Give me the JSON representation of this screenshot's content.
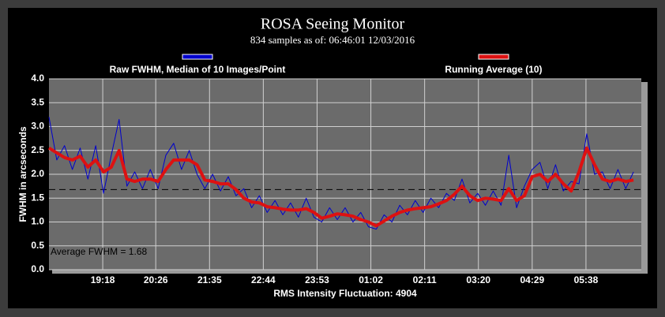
{
  "chart_data": {
    "type": "line",
    "title": "ROSA Seeing Monitor",
    "subtitle": "834 samples as of: 06:46:01 12/03/2016",
    "xlabel": "RMS Intensity Fluctuation: 4904",
    "ylabel": "FWHM in arcseconds",
    "annotation": "Average FWHM = 1.68",
    "average": 1.68,
    "grid": true,
    "xlim": [
      1089,
      1849
    ],
    "ylim": [
      0,
      4
    ],
    "xticks": [
      {
        "value": 1158,
        "label": "19:18"
      },
      {
        "value": 1226,
        "label": "20:26"
      },
      {
        "value": 1295,
        "label": "21:35"
      },
      {
        "value": 1364,
        "label": "22:44"
      },
      {
        "value": 1433,
        "label": "23:53"
      },
      {
        "value": 1502,
        "label": "01:02"
      },
      {
        "value": 1571,
        "label": "02:11"
      },
      {
        "value": 1640,
        "label": "03:20"
      },
      {
        "value": 1709,
        "label": "04:29"
      },
      {
        "value": 1778,
        "label": "05:38"
      }
    ],
    "yticks": [
      {
        "value": 0,
        "label": "0.0"
      },
      {
        "value": 0.5,
        "label": "0.5"
      },
      {
        "value": 1,
        "label": "1.0"
      },
      {
        "value": 1.5,
        "label": "1.5"
      },
      {
        "value": 2,
        "label": "2.0"
      },
      {
        "value": 2.5,
        "label": "2.5"
      },
      {
        "value": 3,
        "label": "3.0"
      },
      {
        "value": 3.5,
        "label": "3.5"
      },
      {
        "value": 4,
        "label": "4.0"
      }
    ],
    "x": [
      1089,
      1099,
      1109,
      1119,
      1129,
      1139,
      1149,
      1159,
      1169,
      1179,
      1189,
      1199,
      1209,
      1219,
      1229,
      1239,
      1249,
      1259,
      1269,
      1279,
      1289,
      1299,
      1309,
      1319,
      1329,
      1339,
      1349,
      1359,
      1369,
      1379,
      1389,
      1399,
      1409,
      1419,
      1429,
      1439,
      1449,
      1459,
      1469,
      1479,
      1489,
      1499,
      1509,
      1519,
      1529,
      1539,
      1549,
      1559,
      1569,
      1579,
      1589,
      1599,
      1609,
      1619,
      1629,
      1639,
      1649,
      1659,
      1669,
      1679,
      1689,
      1699,
      1709,
      1719,
      1729,
      1739,
      1749,
      1759,
      1769,
      1779,
      1789,
      1799,
      1809,
      1819,
      1829,
      1839
    ],
    "series": [
      {
        "name": "Raw FWHM, Median of 10 Images/Point",
        "color": "#0000cc",
        "width": 1,
        "values": [
          3.2,
          2.3,
          2.6,
          2.1,
          2.55,
          1.9,
          2.6,
          1.6,
          2.4,
          3.15,
          1.75,
          2.05,
          1.7,
          2.1,
          1.7,
          2.4,
          2.65,
          2.1,
          2.5,
          2.0,
          1.7,
          2.0,
          1.65,
          1.95,
          1.55,
          1.7,
          1.3,
          1.55,
          1.2,
          1.45,
          1.15,
          1.4,
          1.1,
          1.5,
          1.1,
          1.0,
          1.3,
          1.05,
          1.3,
          1.0,
          1.2,
          0.9,
          0.85,
          1.15,
          1.0,
          1.35,
          1.15,
          1.45,
          1.2,
          1.5,
          1.3,
          1.6,
          1.45,
          1.9,
          1.4,
          1.6,
          1.35,
          1.65,
          1.35,
          2.4,
          1.3,
          1.75,
          2.1,
          2.25,
          1.7,
          2.2,
          1.65,
          1.85,
          1.8,
          2.85,
          2.0,
          2.05,
          1.7,
          2.1,
          1.7,
          2.05
        ]
      },
      {
        "name": "Running Average (10)",
        "color": "#dd1111",
        "width": 4,
        "values": [
          2.55,
          2.45,
          2.35,
          2.3,
          2.38,
          2.15,
          2.3,
          2.05,
          2.15,
          2.5,
          1.9,
          1.85,
          1.9,
          1.9,
          1.85,
          2.1,
          2.3,
          2.3,
          2.3,
          2.2,
          1.88,
          1.85,
          1.8,
          1.8,
          1.68,
          1.5,
          1.42,
          1.4,
          1.32,
          1.3,
          1.27,
          1.25,
          1.25,
          1.28,
          1.2,
          1.08,
          1.12,
          1.17,
          1.15,
          1.12,
          1.05,
          1.0,
          0.92,
          1.02,
          1.12,
          1.2,
          1.25,
          1.28,
          1.3,
          1.32,
          1.38,
          1.45,
          1.58,
          1.75,
          1.55,
          1.45,
          1.5,
          1.48,
          1.45,
          1.7,
          1.45,
          1.55,
          1.95,
          2.0,
          1.85,
          2.0,
          1.8,
          1.65,
          2.05,
          2.55,
          2.2,
          1.9,
          1.85,
          1.9,
          1.85,
          1.88
        ]
      }
    ]
  }
}
